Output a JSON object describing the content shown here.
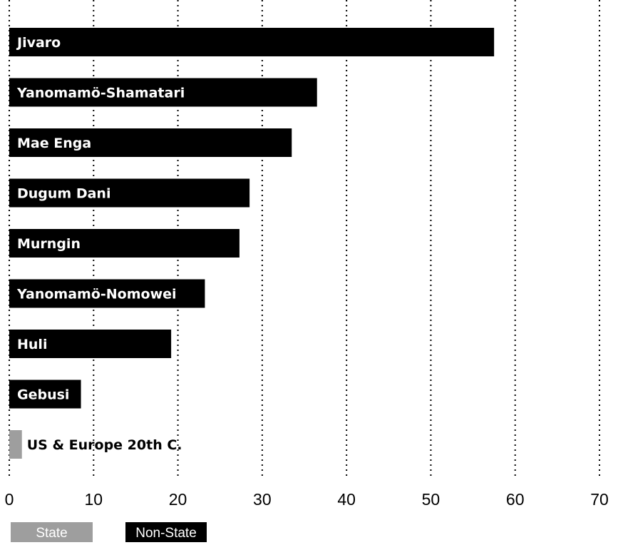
{
  "chart_data": {
    "type": "bar",
    "orientation": "horizontal",
    "title": "",
    "xlabel": "",
    "ylabel": "",
    "xlim": [
      0,
      70
    ],
    "x_ticks": [
      0,
      10,
      20,
      30,
      40,
      50,
      60,
      70
    ],
    "grid": "vertical dotted",
    "categories": [
      "Jivaro",
      "Yanomamö-Shamatari",
      "Mae Enga",
      "Dugum Dani",
      "Murngin",
      "Yanomamö-Nomowei",
      "Huli",
      "Gebusi",
      "US & Europe 20th C."
    ],
    "values": [
      57.5,
      36.5,
      33.5,
      28.5,
      27.3,
      23.2,
      19.2,
      8.5,
      1.5
    ],
    "groups": [
      "Non-State",
      "Non-State",
      "Non-State",
      "Non-State",
      "Non-State",
      "Non-State",
      "Non-State",
      "Non-State",
      "State"
    ],
    "legend": {
      "placement": "bottom-left",
      "items": [
        {
          "label": "State",
          "color": "#9e9e9e"
        },
        {
          "label": "Non-State",
          "color": "#000000"
        }
      ]
    },
    "colors": {
      "State": "#9e9e9e",
      "Non-State": "#000000"
    }
  }
}
